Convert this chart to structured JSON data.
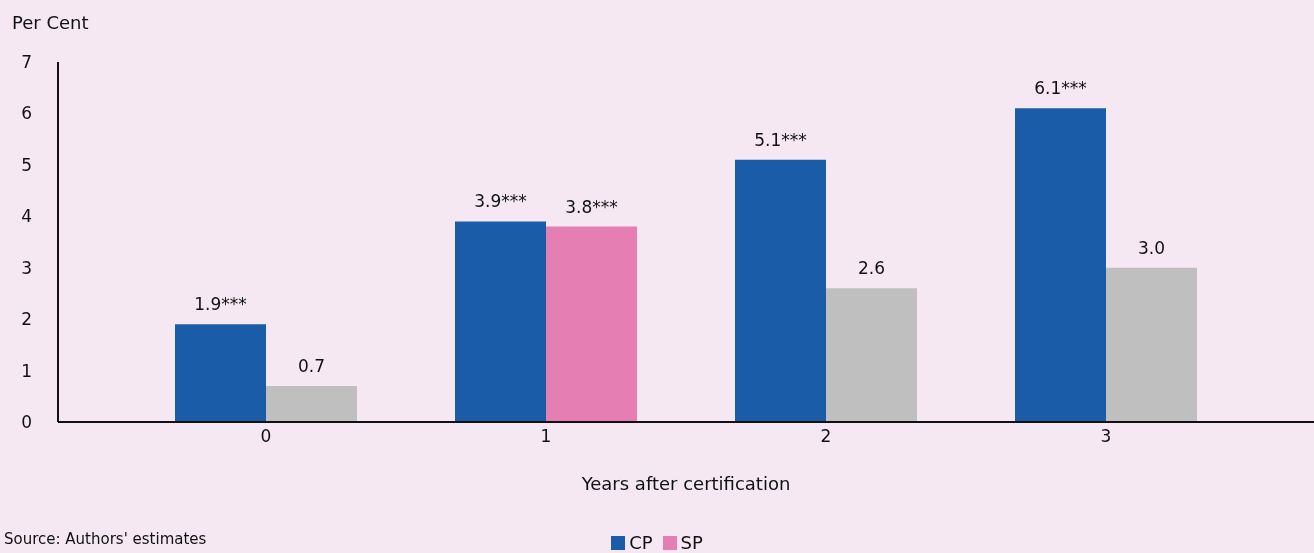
{
  "chart_data": {
    "type": "bar",
    "xlabel": "Years after certification",
    "ylabel": "Per Cent",
    "categories": [
      "0",
      "1",
      "2",
      "3"
    ],
    "series": [
      {
        "name": "CP",
        "color": "#1a5ca8",
        "values": [
          1.9,
          3.9,
          5.1,
          6.1
        ],
        "value_labels": [
          "1.9***",
          "3.9***",
          "5.1***",
          "6.1***"
        ]
      },
      {
        "name": "SP",
        "color": "#e57fb3",
        "colors": [
          "#bfbfbf",
          "#e57fb3",
          "#bfbfbf",
          "#bfbfbf"
        ],
        "values": [
          0.7,
          3.8,
          2.6,
          3.0
        ],
        "value_labels": [
          "0.7",
          "3.8***",
          "2.6",
          "3.0"
        ]
      }
    ],
    "ylim": [
      0,
      7
    ],
    "yticks": [
      0,
      1,
      2,
      3,
      4,
      5,
      6,
      7
    ],
    "legend": "bottom",
    "annotations": [
      "Source: Authors' estimates"
    ]
  }
}
